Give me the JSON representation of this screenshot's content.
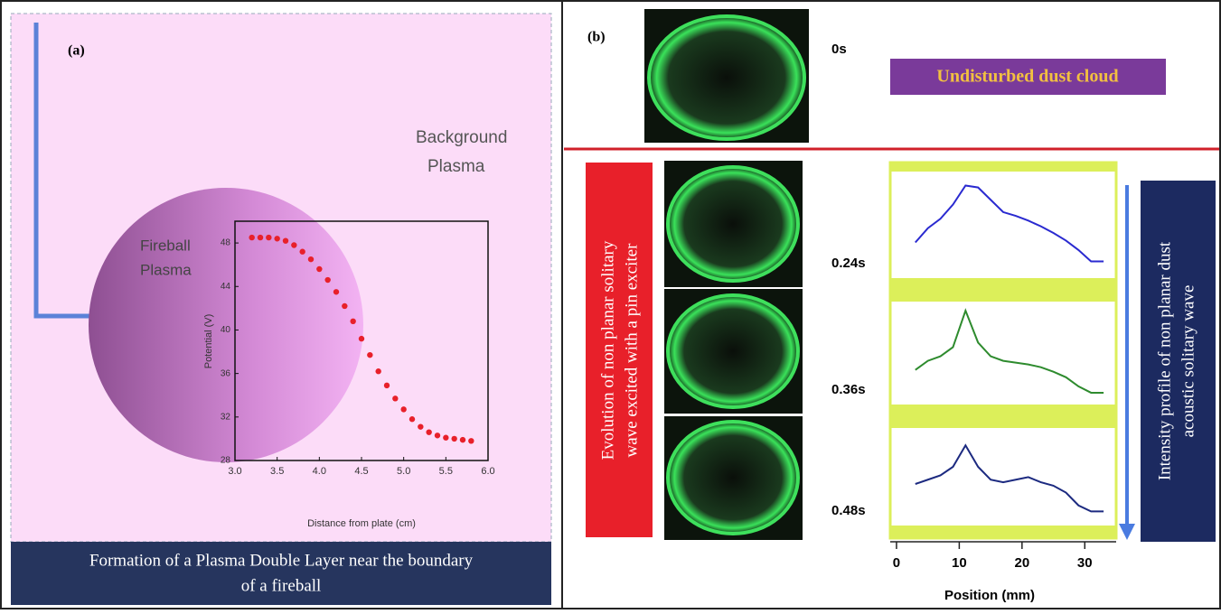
{
  "panel_a": {
    "label": "(a)",
    "background_label": [
      "Background",
      "Plasma"
    ],
    "fireball_label": [
      "Fireball",
      "Plasma"
    ],
    "caption": [
      "Formation of a Plasma Double Layer near the boundary",
      "of a fireball"
    ]
  },
  "panel_b": {
    "label": "(b)",
    "time_top": "0s",
    "undisturbed": "Undisturbed dust cloud",
    "evolution_label": [
      "Evolution of non planar solitary",
      "wave excited with a pin exciter"
    ],
    "intensity_label": [
      "Intensity profile of non planar dust",
      "acoustic solitary wave"
    ]
  },
  "chart_data": [
    {
      "type": "scatter",
      "x_label": "Distance from plate (cm)",
      "y_label": "Potential (V)",
      "color": "#e8202a",
      "x": [
        3.2,
        3.3,
        3.4,
        3.5,
        3.6,
        3.7,
        3.8,
        3.9,
        4.0,
        4.1,
        4.2,
        4.3,
        4.4,
        4.5,
        4.6,
        4.7,
        4.8,
        4.9,
        5.0,
        5.1,
        5.2,
        5.3,
        5.4,
        5.5,
        5.6,
        5.7,
        5.8
      ],
      "values": [
        48.5,
        48.5,
        48.5,
        48.4,
        48.2,
        47.8,
        47.2,
        46.5,
        45.6,
        44.6,
        43.5,
        42.2,
        40.8,
        39.2,
        37.7,
        36.2,
        34.9,
        33.7,
        32.7,
        31.8,
        31.1,
        30.6,
        30.3,
        30.1,
        30.0,
        29.9,
        29.8
      ],
      "xlim": [
        3.0,
        6.0
      ],
      "ylim": [
        28,
        50
      ],
      "xticks": [
        {
          "value": 3.0,
          "label": "3.0"
        },
        3.5,
        {
          "value": 4.0,
          "label": "4.0"
        },
        4.5,
        {
          "value": 5.0,
          "label": "5.0"
        },
        5.5,
        {
          "value": 6.0,
          "label": "6.0"
        }
      ],
      "yticks": [
        28,
        32,
        36,
        40,
        44,
        48
      ]
    },
    {
      "type": "line",
      "x_label": "Position (mm)",
      "x": [
        3,
        5,
        7,
        9,
        11,
        13,
        15,
        17,
        19,
        21,
        23,
        25,
        27,
        29,
        31,
        33
      ],
      "xlim": [
        -1,
        35
      ],
      "ylim": [
        0,
        1
      ],
      "xticks": [
        0,
        10,
        20,
        30
      ],
      "series": [
        {
          "name": "0.24s",
          "color": "#2a2ad0",
          "values": [
            0.3,
            0.45,
            0.55,
            0.7,
            0.9,
            0.88,
            0.75,
            0.62,
            0.58,
            0.53,
            0.47,
            0.4,
            0.32,
            0.22,
            0.1,
            0.1
          ]
        },
        {
          "name": "0.36s",
          "color": "#2e8b2e",
          "values": [
            0.3,
            0.4,
            0.45,
            0.55,
            0.95,
            0.6,
            0.45,
            0.4,
            0.38,
            0.36,
            0.33,
            0.28,
            0.22,
            0.12,
            0.05,
            0.05
          ]
        },
        {
          "name": "0.48s",
          "color": "#1c2a80",
          "values": [
            0.4,
            0.45,
            0.5,
            0.6,
            0.85,
            0.6,
            0.45,
            0.42,
            0.45,
            0.48,
            0.42,
            0.38,
            0.3,
            0.15,
            0.08,
            0.08
          ]
        }
      ]
    }
  ]
}
